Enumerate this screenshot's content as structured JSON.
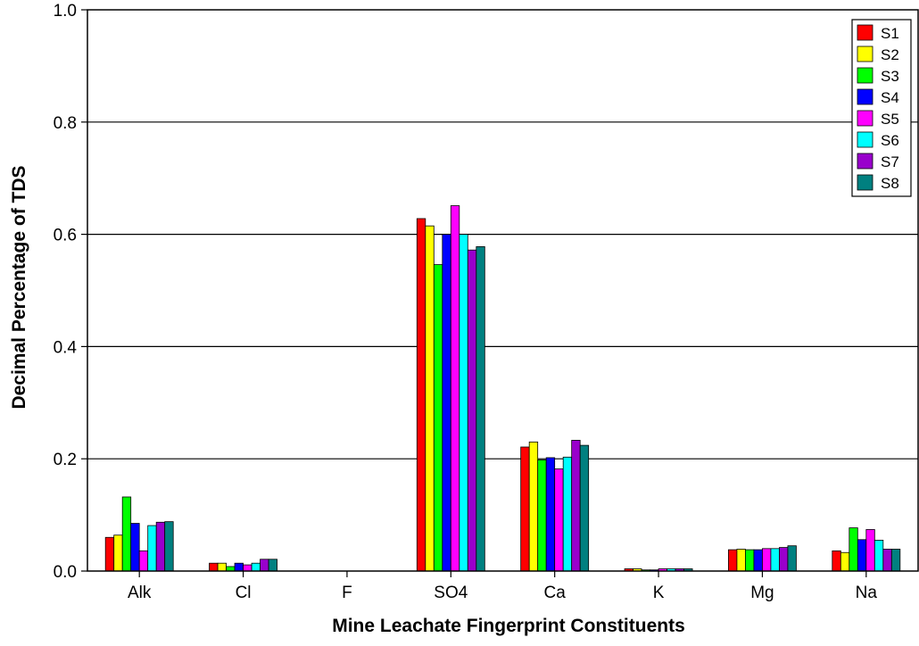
{
  "chart_data": {
    "type": "bar",
    "title": "",
    "xlabel": "Mine Leachate Fingerprint Constituents",
    "ylabel": "Decimal Percentage of TDS",
    "ylim": [
      0,
      1.0
    ],
    "yticks": [
      "0.0",
      "0.2",
      "0.4",
      "0.6",
      "0.8",
      "1.0"
    ],
    "ytick_values": [
      0,
      0.2,
      0.4,
      0.6,
      0.8,
      1.0
    ],
    "grid": "horizontal",
    "legend_position": "top-right",
    "categories": [
      "Alk",
      "Cl",
      "F",
      "SO4",
      "Ca",
      "K",
      "Mg",
      "Na"
    ],
    "series": [
      {
        "name": "S1",
        "color": "#ff0000",
        "values": [
          0.06,
          0.014,
          0,
          0.628,
          0.221,
          0.004,
          0.038,
          0.036
        ]
      },
      {
        "name": "S2",
        "color": "#ffff00",
        "values": [
          0.064,
          0.014,
          0,
          0.615,
          0.23,
          0.004,
          0.039,
          0.033
        ]
      },
      {
        "name": "S3",
        "color": "#00ff00",
        "values": [
          0.132,
          0.008,
          0,
          0.546,
          0.198,
          0.002,
          0.038,
          0.077
        ]
      },
      {
        "name": "S4",
        "color": "#0000ff",
        "values": [
          0.085,
          0.014,
          0,
          0.6,
          0.202,
          0.002,
          0.038,
          0.056
        ]
      },
      {
        "name": "S5",
        "color": "#ff00ff",
        "values": [
          0.036,
          0.011,
          0,
          0.651,
          0.182,
          0.004,
          0.04,
          0.074
        ]
      },
      {
        "name": "S6",
        "color": "#00ffff",
        "values": [
          0.081,
          0.014,
          0,
          0.6,
          0.203,
          0.004,
          0.04,
          0.055
        ]
      },
      {
        "name": "S7",
        "color": "#9900cc",
        "values": [
          0.087,
          0.021,
          0,
          0.572,
          0.233,
          0.004,
          0.042,
          0.039
        ]
      },
      {
        "name": "S8",
        "color": "#008080",
        "values": [
          0.088,
          0.021,
          0,
          0.578,
          0.224,
          0.004,
          0.045,
          0.039
        ]
      }
    ]
  }
}
